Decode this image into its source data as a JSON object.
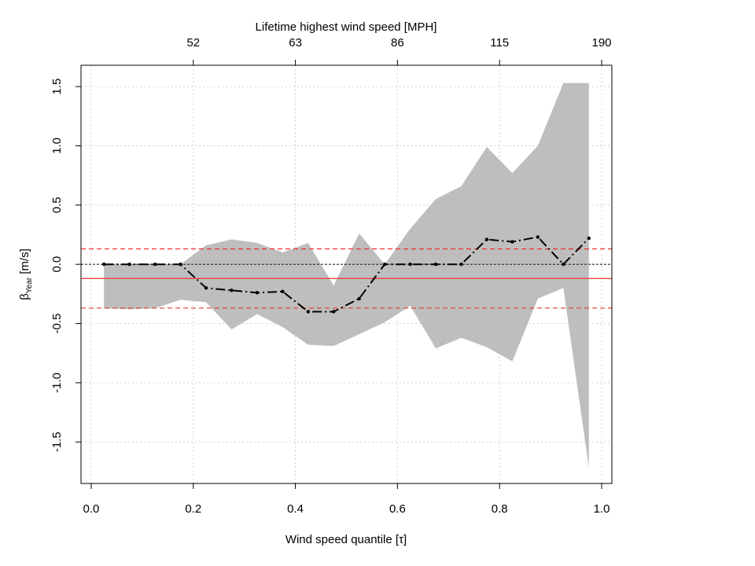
{
  "chart_data": {
    "type": "line",
    "xlabel": "Wind speed quantile [τ]",
    "ylabel_main": "β",
    "ylabel_sub": "Year",
    "ylabel_unit": " [m/s]",
    "top_axis_label": "Lifetime highest wind speed [MPH]",
    "xlim": [
      -0.02,
      1.02
    ],
    "ylim": [
      -1.85,
      1.68
    ],
    "x_ticks": [
      0.0,
      0.2,
      0.4,
      0.6,
      0.8,
      1.0
    ],
    "x_tick_labels": [
      "0.0",
      "0.2",
      "0.4",
      "0.6",
      "0.8",
      "1.0"
    ],
    "y_ticks": [
      -1.5,
      -1.0,
      -0.5,
      0.0,
      0.5,
      1.0,
      1.5
    ],
    "y_tick_labels": [
      "-1.5",
      "-1.0",
      "-0.5",
      "0.0",
      "0.5",
      "1.0",
      "1.5"
    ],
    "top_ticks": [
      0.2,
      0.4,
      0.6,
      0.8,
      1.0
    ],
    "top_tick_labels": [
      "52",
      "63",
      "86",
      "115",
      "190"
    ],
    "grid": true,
    "series": [
      {
        "x": [
          0.025,
          0.075,
          0.125,
          0.175,
          0.225,
          0.275,
          0.325,
          0.375,
          0.425,
          0.475,
          0.525,
          0.575,
          0.625,
          0.675,
          0.725,
          0.775,
          0.825,
          0.875,
          0.925,
          0.975
        ],
        "values": [
          0.0,
          0.0,
          0.0,
          0.0,
          -0.2,
          -0.22,
          -0.24,
          -0.23,
          -0.4,
          -0.4,
          -0.29,
          0.0,
          0.0,
          0.0,
          0.0,
          0.21,
          0.19,
          0.23,
          0.0,
          0.22
        ],
        "lower": [
          -0.37,
          -0.38,
          -0.37,
          -0.3,
          -0.32,
          -0.55,
          -0.42,
          -0.53,
          -0.68,
          -0.69,
          -0.59,
          -0.49,
          -0.35,
          -0.71,
          -0.62,
          -0.7,
          -0.82,
          -0.29,
          -0.2,
          -1.72
        ],
        "upper": [
          0.0,
          0.0,
          0.0,
          0.0,
          0.16,
          0.21,
          0.18,
          0.1,
          0.18,
          -0.18,
          0.26,
          0.0,
          0.3,
          0.55,
          0.66,
          0.99,
          0.77,
          1.0,
          1.53,
          1.53
        ]
      }
    ],
    "reference_lines": {
      "zero": 0.0,
      "mean": -0.12,
      "upper_ci": 0.13,
      "lower_ci": -0.37
    },
    "colors": {
      "band": "#bebebe",
      "line": "#000000",
      "mean": "#ee3333",
      "ci": "#ee3333",
      "zero": "#000000",
      "grid": "#d0d0d0"
    }
  }
}
